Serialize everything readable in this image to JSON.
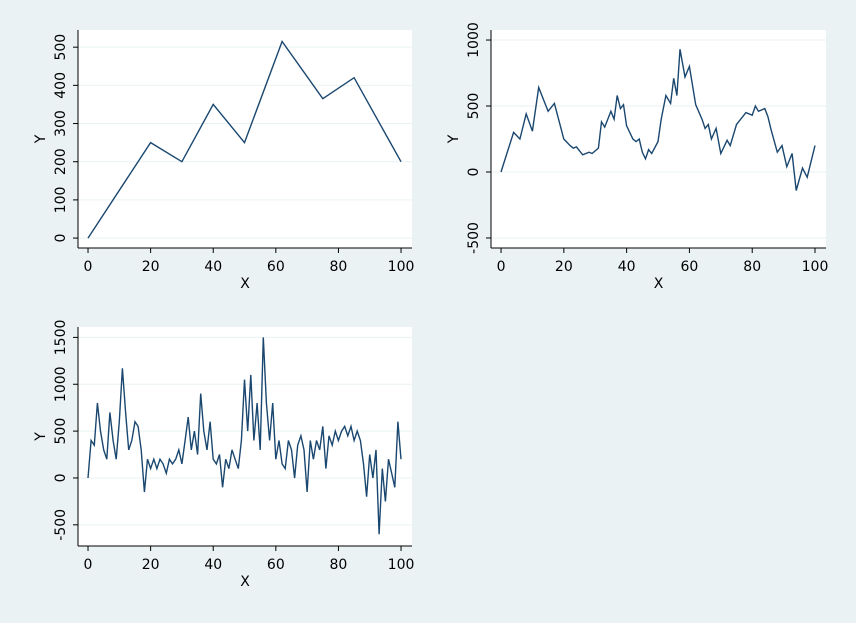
{
  "chart_data": [
    {
      "type": "line",
      "x_label": "X",
      "y_label": "Y",
      "color": "#1a476f",
      "grid": true,
      "x": [
        0,
        20,
        30,
        40,
        50,
        62,
        75,
        85,
        100
      ],
      "values": [
        0,
        250,
        200,
        350,
        250,
        515,
        365,
        420,
        200
      ],
      "xlim": [
        -3.2,
        103.5
      ],
      "ylim": [
        -26,
        545
      ],
      "xticks": [
        0,
        20,
        40,
        60,
        80,
        100
      ],
      "yticks": [
        0,
        100,
        200,
        300,
        400,
        500
      ]
    },
    {
      "type": "line",
      "x_label": "X",
      "y_label": "Y",
      "color": "#1a476f",
      "grid": true,
      "x": [
        0,
        4,
        6,
        8,
        10,
        12,
        15,
        17,
        20,
        22,
        23,
        24,
        26,
        28,
        29,
        31,
        32,
        33,
        35,
        36,
        37,
        38,
        39,
        40,
        42,
        43,
        44,
        45,
        46,
        47,
        48,
        50,
        51,
        52.5,
        54,
        55,
        56,
        57,
        58.6,
        60,
        62,
        64,
        65,
        66,
        67,
        68.5,
        70,
        72,
        73,
        75,
        77,
        78,
        80,
        81,
        82,
        84,
        85,
        86,
        88,
        89.5,
        91,
        92.7,
        94,
        96,
        97.5,
        100
      ],
      "values": [
        0,
        300,
        250,
        440,
        310,
        640,
        460,
        520,
        250,
        200,
        180,
        190,
        130,
        150,
        140,
        180,
        380,
        340,
        460,
        400,
        580,
        480,
        510,
        350,
        250,
        230,
        250,
        150,
        100,
        170,
        140,
        230,
        400,
        580,
        520,
        710,
        580,
        930,
        720,
        800,
        510,
        400,
        330,
        360,
        250,
        330,
        140,
        240,
        200,
        360,
        420,
        450,
        430,
        500,
        460,
        480,
        420,
        320,
        150,
        200,
        40,
        140,
        -140,
        30,
        -40,
        200
      ],
      "xlim": [
        -3.2,
        103.5
      ],
      "ylim": [
        -576,
        1076
      ],
      "xticks": [
        0,
        20,
        40,
        60,
        80,
        100
      ],
      "yticks": [
        -500,
        0,
        500,
        1000
      ]
    },
    {
      "type": "line",
      "x_label": "X",
      "y_label": "Y",
      "color": "#1a476f",
      "grid": true,
      "x": [
        0,
        1,
        2,
        3,
        4,
        5,
        6,
        7,
        8,
        9,
        10,
        11,
        12,
        13,
        14,
        15,
        16,
        17,
        18,
        19,
        20,
        21,
        22,
        23,
        24,
        25,
        26,
        27,
        28,
        29,
        30,
        31,
        32,
        33,
        34,
        35,
        36,
        37,
        38,
        39,
        40,
        41,
        42,
        43,
        44,
        45,
        46,
        47,
        48,
        49,
        50,
        51,
        52,
        53,
        54,
        55,
        56,
        57,
        58,
        59,
        60,
        61,
        62,
        63,
        64,
        65,
        66,
        67,
        68,
        69,
        70,
        71,
        72,
        73,
        74,
        75,
        76,
        77,
        78,
        79,
        80,
        81,
        82,
        83,
        84,
        85,
        86,
        87,
        88,
        89,
        90,
        91,
        92,
        93,
        94,
        95,
        96,
        97,
        98,
        99,
        100
      ],
      "values": [
        0,
        400,
        350,
        800,
        500,
        300,
        200,
        700,
        400,
        200,
        600,
        1170,
        700,
        300,
        400,
        600,
        550,
        300,
        -150,
        200,
        100,
        200,
        100,
        200,
        150,
        50,
        200,
        150,
        200,
        300,
        150,
        400,
        650,
        300,
        500,
        250,
        900,
        500,
        300,
        600,
        200,
        150,
        250,
        -100,
        200,
        100,
        300,
        200,
        100,
        400,
        1050,
        500,
        1100,
        400,
        800,
        300,
        1500,
        800,
        400,
        800,
        200,
        400,
        150,
        100,
        400,
        300,
        0,
        350,
        450,
        300,
        -150,
        400,
        200,
        400,
        300,
        550,
        100,
        450,
        350,
        500,
        400,
        500,
        550,
        450,
        550,
        400,
        500,
        400,
        150,
        -200,
        250,
        0,
        300,
        -600,
        100,
        -250,
        200,
        50,
        -100,
        600,
        200
      ],
      "xlim": [
        -3.2,
        103.5
      ],
      "ylim": [
        -726,
        1611
      ],
      "xticks": [
        0,
        20,
        40,
        60,
        80,
        100
      ],
      "yticks": [
        -500,
        0,
        500,
        1000,
        1500
      ]
    }
  ]
}
